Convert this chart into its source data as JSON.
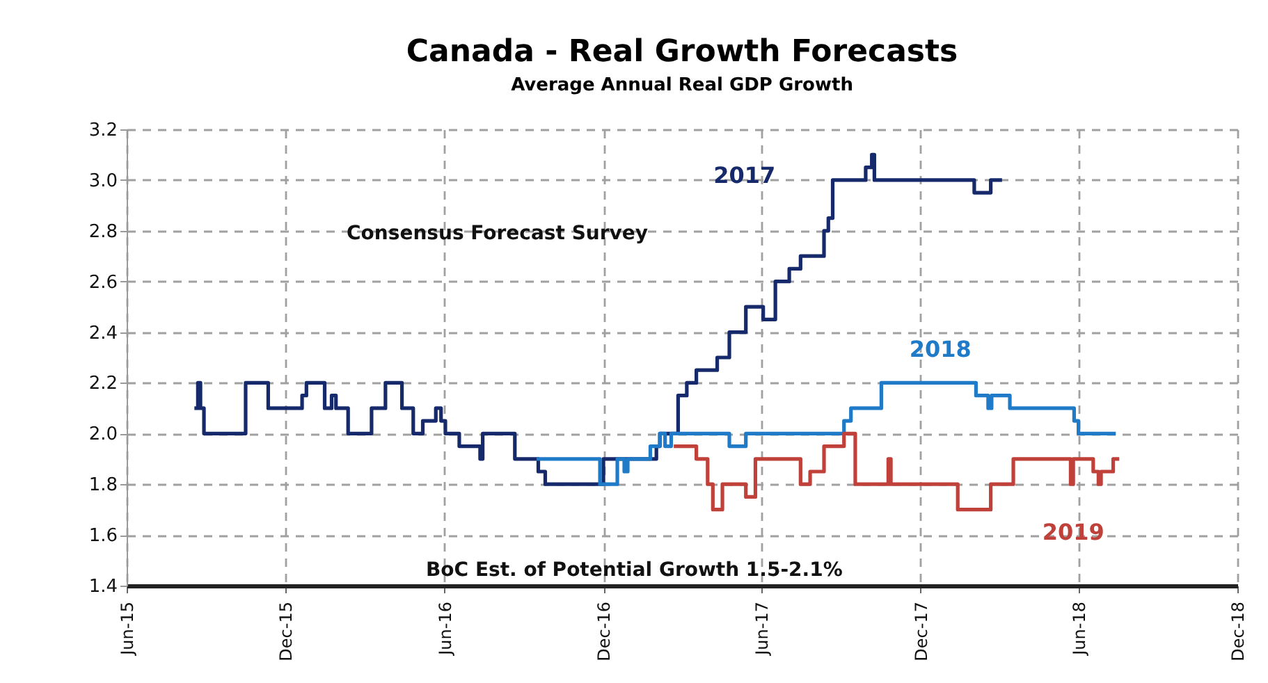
{
  "chart_data": {
    "type": "step",
    "title": "Canada - Real Growth Forecasts",
    "subtitle": "Average Annual Real GDP Growth",
    "annotations": [
      "Consensus Forecast Survey",
      "BoC Est. of Potential Growth 1.5-2.1%"
    ],
    "xlim": [
      "2015-06-01",
      "2018-12-01"
    ],
    "xticks": [
      {
        "value": "2015-06-01",
        "label": "Jun-15"
      },
      {
        "value": "2015-12-01",
        "label": "Dec-15"
      },
      {
        "value": "2016-06-01",
        "label": "Jun-16"
      },
      {
        "value": "2016-12-01",
        "label": "Dec-16"
      },
      {
        "value": "2017-06-01",
        "label": "Jun-17"
      },
      {
        "value": "2017-12-01",
        "label": "Dec-17"
      },
      {
        "value": "2018-06-01",
        "label": "Jun-18"
      },
      {
        "value": "2018-12-01",
        "label": "Dec-18"
      }
    ],
    "ylim": [
      1.4,
      3.2
    ],
    "yticks": [
      1.4,
      1.6,
      1.8,
      {
        "value": 2,
        "label": "2.0"
      },
      2.2,
      2.4,
      2.6,
      2.8,
      {
        "value": 3,
        "label": "3.0"
      },
      3.2
    ],
    "grid": true,
    "legend": false,
    "line_style": "solid",
    "marker": "none",
    "series": [
      {
        "name": "2017",
        "color": "#15296b",
        "x": [
          "2015-08-18",
          "2015-08-22",
          "2015-08-25",
          "2015-08-29",
          "2015-10-16",
          "2015-11-11",
          "2015-12-20",
          "2015-12-25",
          "2016-01-15",
          "2016-01-23",
          "2016-01-28",
          "2016-02-11",
          "2016-03-09",
          "2016-03-25",
          "2016-04-13",
          "2016-04-26",
          "2016-05-07",
          "2016-05-22",
          "2016-05-28",
          "2016-06-02",
          "2016-06-18",
          "2016-07-12",
          "2016-07-15",
          "2016-08-21",
          "2016-09-17",
          "2016-09-25",
          "2016-12-01",
          "2017-01-31",
          "2017-02-04",
          "2017-02-25",
          "2017-03-07",
          "2017-03-18",
          "2017-04-11",
          "2017-04-25",
          "2017-05-14",
          "2017-06-03",
          "2017-06-17",
          "2017-07-03",
          "2017-07-16",
          "2017-08-12",
          "2017-08-17",
          "2017-08-22",
          "2017-09-29",
          "2017-10-06",
          "2017-10-09",
          "2018-02-01",
          "2018-02-20",
          "2018-03-05"
        ],
        "values": [
          2.1,
          2.2,
          2.1,
          2.0,
          2.2,
          2.1,
          2.15,
          2.2,
          2.1,
          2.15,
          2.1,
          2.0,
          2.1,
          2.2,
          2.1,
          2.0,
          2.05,
          2.1,
          2.05,
          2.0,
          1.95,
          1.9,
          2.0,
          1.9,
          1.85,
          1.8,
          1.9,
          1.95,
          2.0,
          2.15,
          2.2,
          2.25,
          2.3,
          2.4,
          2.5,
          2.45,
          2.6,
          2.65,
          2.7,
          2.8,
          2.85,
          3.0,
          3.05,
          3.1,
          3.0,
          2.95,
          3.0,
          3.0
        ]
      },
      {
        "name": "2018",
        "color": "#1f7ac8",
        "x": [
          "2016-09-15",
          "2016-11-27",
          "2016-12-17",
          "2016-12-25",
          "2016-12-29",
          "2017-01-24",
          "2017-02-04",
          "2017-02-10",
          "2017-02-17",
          "2017-04-25",
          "2017-05-14",
          "2017-09-04",
          "2017-09-12",
          "2017-10-17",
          "2018-02-03",
          "2018-02-17",
          "2018-02-21",
          "2018-03-14",
          "2018-05-27",
          "2018-06-01",
          "2018-07-14"
        ],
        "values": [
          1.9,
          1.8,
          1.9,
          1.85,
          1.9,
          1.95,
          2.0,
          1.95,
          2.0,
          1.95,
          2.0,
          2.05,
          2.1,
          2.2,
          2.15,
          2.1,
          2.15,
          2.1,
          2.05,
          2.0,
          2.0
        ]
      },
      {
        "name": "2019",
        "color": "#c0403a",
        "x": [
          "2017-02-20",
          "2017-03-18",
          "2017-03-31",
          "2017-04-06",
          "2017-04-17",
          "2017-05-14",
          "2017-05-25",
          "2017-07-16",
          "2017-07-27",
          "2017-08-12",
          "2017-09-04",
          "2017-09-17",
          "2017-10-25",
          "2017-10-28",
          "2018-01-13",
          "2018-02-20",
          "2018-03-18",
          "2018-05-23",
          "2018-05-26",
          "2018-06-18",
          "2018-06-24",
          "2018-06-27",
          "2018-07-11",
          "2018-07-18"
        ],
        "values": [
          1.95,
          1.9,
          1.8,
          1.7,
          1.8,
          1.75,
          1.9,
          1.8,
          1.85,
          1.95,
          2.0,
          1.8,
          1.9,
          1.8,
          1.7,
          1.8,
          1.9,
          1.8,
          1.9,
          1.85,
          1.8,
          1.85,
          1.9,
          1.9
        ]
      }
    ]
  }
}
